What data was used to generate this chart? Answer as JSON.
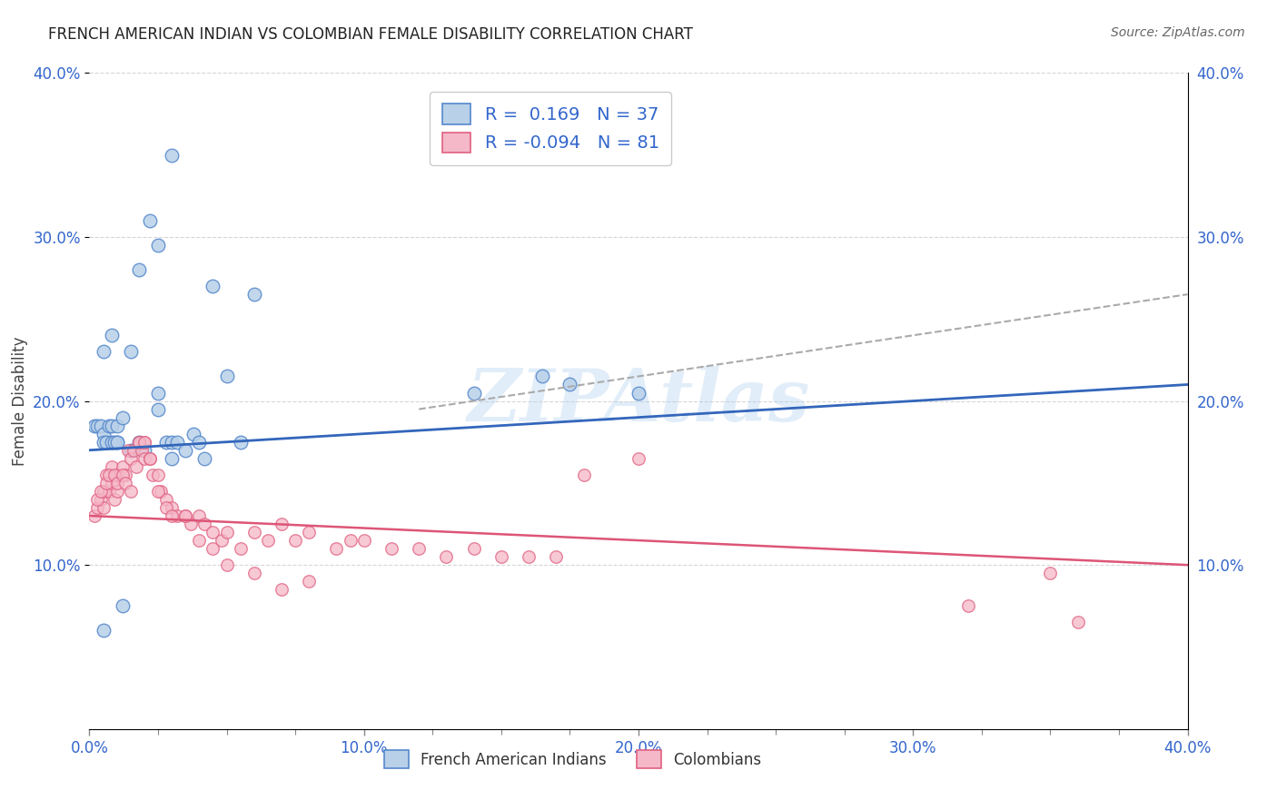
{
  "title": "FRENCH AMERICAN INDIAN VS COLOMBIAN FEMALE DISABILITY CORRELATION CHART",
  "source": "Source: ZipAtlas.com",
  "ylabel": "Female Disability",
  "watermark": "ZIPAtlas",
  "blue_R": 0.169,
  "blue_N": 37,
  "pink_R": -0.094,
  "pink_N": 81,
  "xlim": [
    0.0,
    0.4
  ],
  "ylim": [
    0.0,
    0.4
  ],
  "xticks": [
    0.0,
    0.1,
    0.2,
    0.3,
    0.4
  ],
  "yticks": [
    0.1,
    0.2,
    0.3,
    0.4
  ],
  "ytick_labels": [
    "10.0%",
    "20.0%",
    "30.0%",
    "40.0%"
  ],
  "xtick_labels": [
    "0.0%",
    "10.0%",
    "20.0%",
    "30.0%",
    "40.0%"
  ],
  "grid_color": "#cccccc",
  "background_color": "#ffffff",
  "blue_fill": "#b8d0e8",
  "blue_edge": "#5588cc",
  "pink_fill": "#f5b8c8",
  "pink_edge": "#e06080",
  "blue_line_color": "#3366bb",
  "pink_line_color": "#dd5577",
  "trend_line_color": "#aaaaaa",
  "blue_x": [
    0.01,
    0.015,
    0.018,
    0.02,
    0.025,
    0.025,
    0.028,
    0.03,
    0.03,
    0.032,
    0.035,
    0.038,
    0.04,
    0.042,
    0.045,
    0.05,
    0.055,
    0.06,
    0.002,
    0.003,
    0.004,
    0.005,
    0.005,
    0.006,
    0.007,
    0.008,
    0.008,
    0.009,
    0.01,
    0.01,
    0.012,
    0.015,
    0.022,
    0.14,
    0.165,
    0.175,
    0.2
  ],
  "blue_y": [
    0.175,
    0.17,
    0.175,
    0.17,
    0.205,
    0.195,
    0.175,
    0.165,
    0.175,
    0.175,
    0.17,
    0.18,
    0.175,
    0.165,
    0.27,
    0.215,
    0.175,
    0.265,
    0.185,
    0.185,
    0.185,
    0.18,
    0.175,
    0.175,
    0.185,
    0.175,
    0.185,
    0.175,
    0.185,
    0.175,
    0.19,
    0.23,
    0.31,
    0.205,
    0.215,
    0.21,
    0.205
  ],
  "blue_y_outliers": [
    0.35,
    0.28,
    0.295,
    0.23,
    0.24,
    0.06,
    0.075
  ],
  "blue_x_outliers": [
    0.03,
    0.018,
    0.025,
    0.005,
    0.008,
    0.005,
    0.012
  ],
  "pink_x": [
    0.002,
    0.003,
    0.004,
    0.005,
    0.005,
    0.006,
    0.007,
    0.008,
    0.008,
    0.009,
    0.01,
    0.01,
    0.012,
    0.013,
    0.014,
    0.015,
    0.016,
    0.017,
    0.018,
    0.019,
    0.02,
    0.02,
    0.022,
    0.023,
    0.025,
    0.026,
    0.028,
    0.03,
    0.032,
    0.035,
    0.037,
    0.04,
    0.042,
    0.045,
    0.048,
    0.05,
    0.055,
    0.06,
    0.065,
    0.07,
    0.075,
    0.08,
    0.09,
    0.095,
    0.1,
    0.11,
    0.12,
    0.13,
    0.14,
    0.15,
    0.16,
    0.17,
    0.003,
    0.004,
    0.006,
    0.007,
    0.009,
    0.01,
    0.012,
    0.013,
    0.015,
    0.018,
    0.02,
    0.022,
    0.025,
    0.028,
    0.03,
    0.035,
    0.04,
    0.045,
    0.05,
    0.06,
    0.07,
    0.08,
    0.18,
    0.2,
    0.32,
    0.35,
    0.36
  ],
  "pink_y": [
    0.13,
    0.135,
    0.14,
    0.145,
    0.135,
    0.155,
    0.145,
    0.16,
    0.15,
    0.14,
    0.155,
    0.145,
    0.16,
    0.155,
    0.17,
    0.165,
    0.17,
    0.16,
    0.175,
    0.17,
    0.175,
    0.165,
    0.165,
    0.155,
    0.155,
    0.145,
    0.14,
    0.135,
    0.13,
    0.13,
    0.125,
    0.13,
    0.125,
    0.12,
    0.115,
    0.12,
    0.11,
    0.12,
    0.115,
    0.125,
    0.115,
    0.12,
    0.11,
    0.115,
    0.115,
    0.11,
    0.11,
    0.105,
    0.11,
    0.105,
    0.105,
    0.105,
    0.14,
    0.145,
    0.15,
    0.155,
    0.155,
    0.15,
    0.155,
    0.15,
    0.145,
    0.175,
    0.175,
    0.165,
    0.145,
    0.135,
    0.13,
    0.13,
    0.115,
    0.11,
    0.1,
    0.095,
    0.085,
    0.09,
    0.155,
    0.165,
    0.075,
    0.095,
    0.065
  ]
}
